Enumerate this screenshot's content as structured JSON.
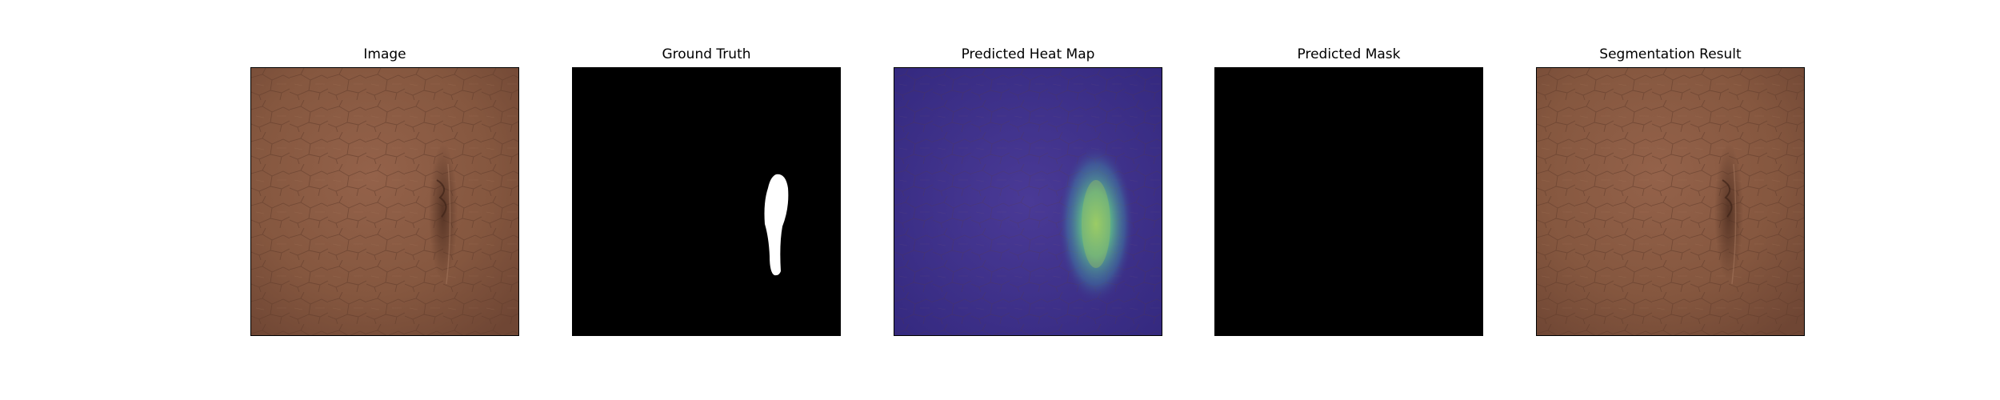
{
  "figure": {
    "panels": [
      {
        "title": "Image",
        "kind": "image"
      },
      {
        "title": "Ground Truth",
        "kind": "mask-gt"
      },
      {
        "title": "Predicted Heat Map",
        "kind": "heatmap"
      },
      {
        "title": "Predicted Mask",
        "kind": "mask-pred"
      },
      {
        "title": "Segmentation Result",
        "kind": "image"
      }
    ]
  },
  "colors": {
    "leather": "#8a5a44",
    "leather_dark": "#6e4433",
    "mask_bg": "#000000",
    "mask_fg": "#ffffff",
    "heat_low": "#3d2f8c",
    "heat_high": "#7fd36a"
  }
}
